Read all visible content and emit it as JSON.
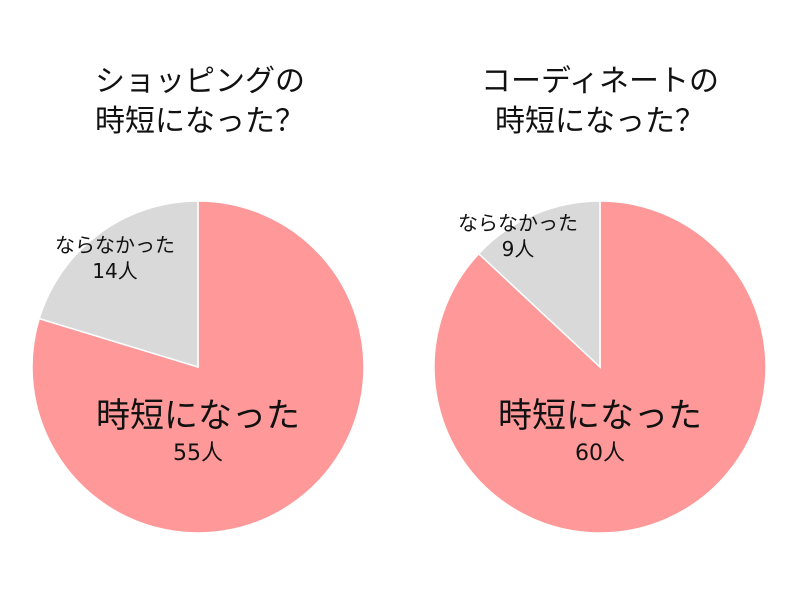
{
  "colors": {
    "yes": "#FF9999",
    "no": "#D9D9D9",
    "separator": "#FFFFFF",
    "text": "#111111"
  },
  "charts": [
    {
      "title_line1": "ショッピングの",
      "title_line2": "時短になった？",
      "yes_label": "時短になった",
      "yes_count": "55人",
      "no_label": "ならなかった",
      "no_count": "14人"
    },
    {
      "title_line1": "コーディネートの",
      "title_line2": "時短になった？",
      "yes_label": "時短になった",
      "yes_count": "60人",
      "no_label": "ならなかった",
      "no_count": "9人"
    }
  ],
  "chart_data": [
    {
      "type": "pie",
      "title": "ショッピングの時短になった？",
      "categories": [
        "時短になった",
        "ならなかった"
      ],
      "values": [
        55,
        14
      ],
      "unit": "人",
      "colors": [
        "#FF9999",
        "#D9D9D9"
      ],
      "start_angle": "12 o'clock",
      "legend": "none (inline labels)"
    },
    {
      "type": "pie",
      "title": "コーディネートの時短になった？",
      "categories": [
        "時短になった",
        "ならなかった"
      ],
      "values": [
        60,
        9
      ],
      "unit": "人",
      "colors": [
        "#FF9999",
        "#D9D9D9"
      ],
      "start_angle": "12 o'clock",
      "legend": "none (inline labels)"
    }
  ]
}
